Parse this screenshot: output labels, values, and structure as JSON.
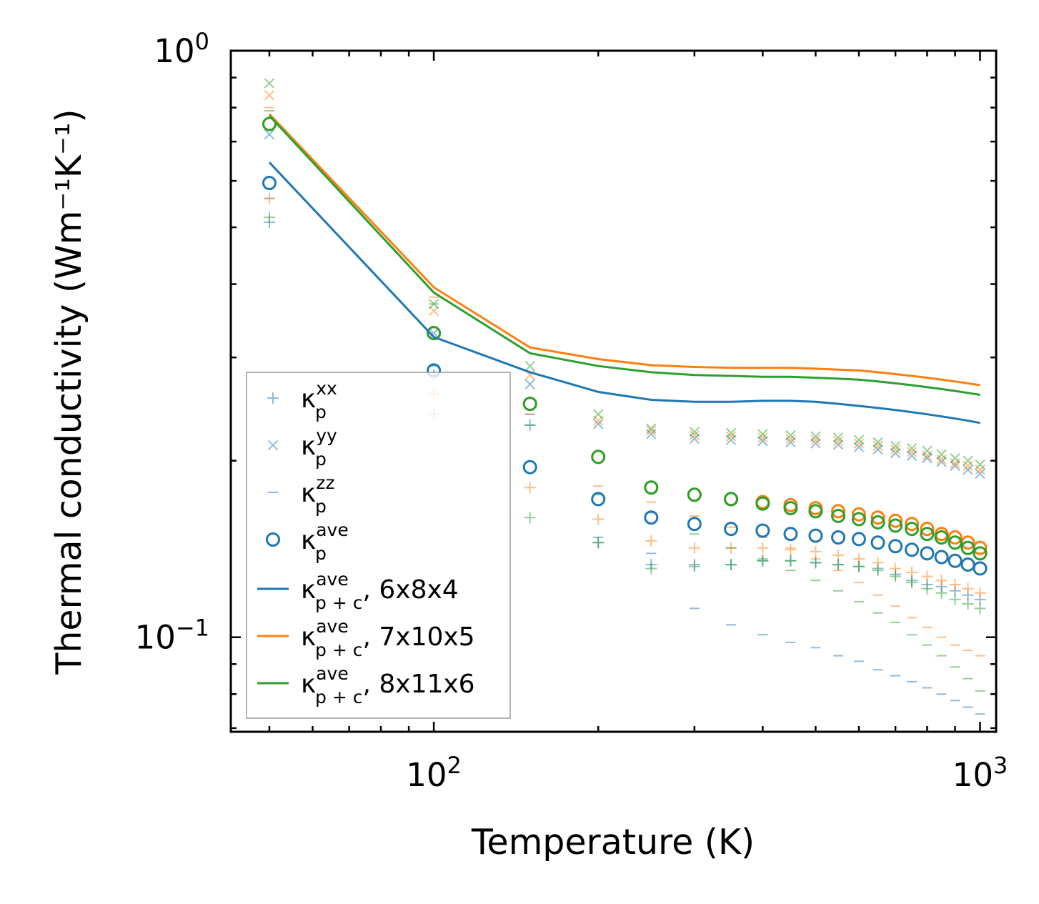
{
  "chart_data": {
    "type": "scatter",
    "xlabel": "Temperature (K)",
    "ylabel": "Thermal conductivity (Wm⁻¹K⁻¹)",
    "xscale": "log",
    "yscale": "log",
    "xlim": [
      42.5,
      1070
    ],
    "ylim": [
      0.069,
      1.0
    ],
    "x_tick_labels": [
      {
        "base": "10",
        "exp": "2",
        "value": 100
      },
      {
        "base": "10",
        "exp": "3",
        "value": 1000
      }
    ],
    "y_tick_labels": [
      {
        "base": "10",
        "exp": "0",
        "value": 1.0
      },
      {
        "base": "10",
        "exp": "−1",
        "value": 0.1
      }
    ],
    "legend_position": "lower-left",
    "legend_items": [
      {
        "kind": "marker",
        "marker": "plus",
        "sym": "κ",
        "sub": "p",
        "sup": "xx",
        "tail": "",
        "color": "#1f77b4",
        "alpha": 0.5
      },
      {
        "kind": "marker",
        "marker": "x",
        "sym": "κ",
        "sub": "p",
        "sup": "yy",
        "tail": "",
        "color": "#1f77b4",
        "alpha": 0.5
      },
      {
        "kind": "marker",
        "marker": "dash",
        "sym": "κ",
        "sub": "p",
        "sup": "zz",
        "tail": "",
        "color": "#1f77b4",
        "alpha": 0.5
      },
      {
        "kind": "marker",
        "marker": "circle",
        "sym": "κ",
        "sub": "p",
        "sup": "ave",
        "tail": "",
        "color": "#1f77b4",
        "alpha": 1
      },
      {
        "kind": "line",
        "sym": "κ",
        "sub": "p + c",
        "sup": "ave",
        "tail": ", 6x8x4",
        "color": "#1f77b4",
        "alpha": 1
      },
      {
        "kind": "line",
        "sym": "κ",
        "sub": "p + c",
        "sup": "ave",
        "tail": ", 7x10x5",
        "color": "#ff7f0e",
        "alpha": 1
      },
      {
        "kind": "line",
        "sym": "κ",
        "sub": "p + c",
        "sup": "ave",
        "tail": ", 8x11x6",
        "color": "#2ca02c",
        "alpha": 1
      }
    ],
    "temperature": [
      50,
      100,
      150,
      200,
      250,
      300,
      350,
      400,
      450,
      500,
      550,
      600,
      650,
      700,
      750,
      800,
      850,
      900,
      950,
      1000
    ],
    "series": [
      {
        "name": "6x8x4",
        "color": "#1f77b4",
        "kxx": [
          0.51,
          0.28,
          0.23,
          0.145,
          0.133,
          0.133,
          0.133,
          0.135,
          0.135,
          0.134,
          0.133,
          0.132,
          0.131,
          0.128,
          0.125,
          0.123,
          0.122,
          0.12,
          0.118,
          0.116
        ],
        "kyy": [
          0.72,
          0.33,
          0.27,
          0.231,
          0.222,
          0.218,
          0.217,
          0.216,
          0.215,
          0.214,
          0.213,
          0.211,
          0.209,
          0.206,
          0.204,
          0.202,
          0.199,
          0.196,
          0.193,
          0.19
        ],
        "kzz": [
          0.56,
          0.29,
          0.24,
          0.148,
          0.139,
          0.112,
          0.105,
          0.101,
          0.098,
          0.096,
          0.093,
          0.091,
          0.088,
          0.086,
          0.084,
          0.082,
          0.08,
          0.078,
          0.076,
          0.074
        ],
        "kave": [
          0.595,
          0.285,
          0.195,
          0.172,
          0.16,
          0.156,
          0.153,
          0.152,
          0.15,
          0.149,
          0.148,
          0.147,
          0.145,
          0.143,
          0.141,
          0.139,
          0.137,
          0.135,
          0.133,
          0.131
        ],
        "kpc": [
          0.645,
          0.325,
          0.283,
          0.262,
          0.254,
          0.252,
          0.252,
          0.253,
          0.253,
          0.252,
          0.25,
          0.248,
          0.246,
          0.244,
          0.242,
          0.24,
          0.238,
          0.236,
          0.234,
          0.232
        ]
      },
      {
        "name": "7x10x5",
        "color": "#ff7f0e",
        "kxx": [
          0.56,
          0.26,
          0.18,
          0.159,
          0.146,
          0.142,
          0.142,
          0.142,
          0.141,
          0.14,
          0.138,
          0.136,
          0.134,
          0.131,
          0.129,
          0.127,
          0.125,
          0.123,
          0.121,
          0.119
        ],
        "kyy": [
          0.84,
          0.36,
          0.28,
          0.234,
          0.225,
          0.221,
          0.22,
          0.219,
          0.218,
          0.217,
          0.216,
          0.214,
          0.212,
          0.209,
          0.207,
          0.204,
          0.201,
          0.198,
          0.196,
          0.193
        ],
        "kzz": [
          0.8,
          0.38,
          0.24,
          0.181,
          0.17,
          0.161,
          0.154,
          0.148,
          0.142,
          0.136,
          0.13,
          0.124,
          0.118,
          0.113,
          0.108,
          0.104,
          0.1,
          0.097,
          0.095,
          0.093
        ],
        "kave": [
          0.75,
          0.33,
          0.25,
          0.203,
          0.18,
          0.175,
          0.172,
          0.17,
          0.168,
          0.166,
          0.164,
          0.162,
          0.16,
          0.158,
          0.156,
          0.153,
          0.15,
          0.148,
          0.145,
          0.142
        ],
        "kpc": [
          0.78,
          0.395,
          0.312,
          0.298,
          0.291,
          0.289,
          0.288,
          0.288,
          0.288,
          0.287,
          0.286,
          0.285,
          0.283,
          0.281,
          0.279,
          0.277,
          0.275,
          0.273,
          0.271,
          0.269
        ]
      },
      {
        "name": "8x11x6",
        "color": "#2ca02c",
        "kxx": [
          0.52,
          0.24,
          0.16,
          0.145,
          0.131,
          0.132,
          0.133,
          0.135,
          0.135,
          0.134,
          0.133,
          0.132,
          0.13,
          0.127,
          0.124,
          0.121,
          0.119,
          0.116,
          0.114,
          0.112
        ],
        "kyy": [
          0.88,
          0.37,
          0.29,
          0.24,
          0.227,
          0.224,
          0.223,
          0.222,
          0.221,
          0.22,
          0.219,
          0.217,
          0.215,
          0.212,
          0.21,
          0.208,
          0.205,
          0.202,
          0.2,
          0.197
        ],
        "kzz": [
          0.79,
          0.37,
          0.23,
          0.175,
          0.163,
          0.15,
          0.142,
          0.136,
          0.13,
          0.125,
          0.12,
          0.115,
          0.11,
          0.106,
          0.101,
          0.097,
          0.093,
          0.089,
          0.085,
          0.081
        ],
        "kave": [
          0.75,
          0.33,
          0.25,
          0.203,
          0.18,
          0.175,
          0.172,
          0.169,
          0.166,
          0.164,
          0.161,
          0.159,
          0.157,
          0.155,
          0.153,
          0.15,
          0.148,
          0.145,
          0.142,
          0.139
        ],
        "kpc": [
          0.775,
          0.387,
          0.305,
          0.29,
          0.283,
          0.28,
          0.279,
          0.278,
          0.278,
          0.277,
          0.276,
          0.275,
          0.273,
          0.271,
          0.269,
          0.267,
          0.265,
          0.263,
          0.261,
          0.259
        ]
      }
    ]
  }
}
